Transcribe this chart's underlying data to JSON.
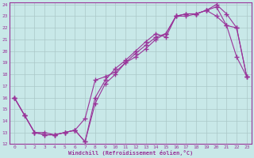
{
  "xlabel": "Windchill (Refroidissement éolien,°C)",
  "bg_color": "#c8e8e8",
  "grid_color": "#aac8c8",
  "line_color": "#993399",
  "xlim": [
    -0.5,
    23.5
  ],
  "ylim": [
    12,
    24.2
  ],
  "xticks": [
    0,
    1,
    2,
    3,
    4,
    5,
    6,
    7,
    8,
    9,
    10,
    11,
    12,
    13,
    14,
    15,
    16,
    17,
    18,
    19,
    20,
    21,
    22,
    23
  ],
  "yticks": [
    12,
    13,
    14,
    15,
    16,
    17,
    18,
    19,
    20,
    21,
    22,
    23,
    24
  ],
  "line1_x": [
    0,
    1,
    2,
    3,
    4,
    5,
    6,
    7,
    8,
    9,
    10,
    11,
    12,
    13,
    14,
    15,
    16,
    17,
    18,
    19,
    20,
    21,
    22,
    23
  ],
  "line1_y": [
    16.0,
    14.5,
    13.0,
    12.8,
    12.8,
    13.0,
    13.2,
    12.2,
    16.0,
    17.5,
    18.5,
    19.2,
    20.0,
    20.8,
    21.5,
    21.2,
    23.0,
    23.2,
    23.2,
    23.5,
    23.8,
    22.2,
    19.5,
    17.8
  ],
  "line2_x": [
    0,
    1,
    2,
    3,
    4,
    5,
    6,
    7,
    8,
    9,
    10,
    11,
    12,
    13,
    14,
    15,
    16,
    17,
    18,
    19,
    20,
    21,
    22,
    23
  ],
  "line2_y": [
    16.0,
    14.5,
    13.0,
    12.8,
    12.8,
    13.0,
    13.2,
    12.2,
    15.5,
    17.2,
    18.0,
    19.0,
    19.8,
    20.5,
    21.2,
    21.5,
    23.0,
    23.0,
    23.2,
    23.5,
    24.0,
    23.2,
    22.0,
    17.8
  ],
  "line3_x": [
    0,
    1,
    2,
    3,
    4,
    5,
    6,
    7,
    8,
    9,
    10,
    11,
    12,
    13,
    14,
    15,
    16,
    17,
    18,
    19,
    20,
    21,
    22,
    23
  ],
  "line3_y": [
    16.0,
    14.5,
    13.0,
    13.0,
    12.8,
    13.0,
    13.2,
    14.2,
    17.5,
    17.8,
    18.2,
    19.0,
    19.5,
    20.2,
    21.0,
    21.5,
    23.0,
    23.2,
    23.2,
    23.5,
    23.0,
    22.2,
    22.0,
    17.8
  ]
}
